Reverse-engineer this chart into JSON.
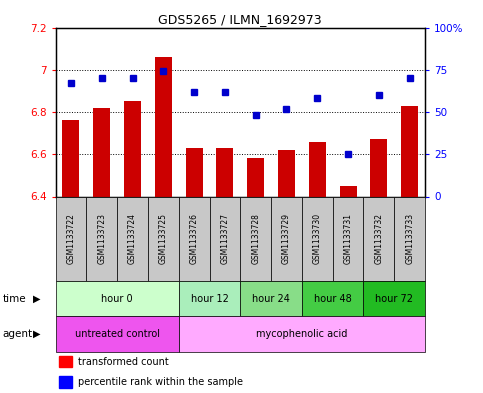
{
  "title": "GDS5265 / ILMN_1692973",
  "samples": [
    "GSM1133722",
    "GSM1133723",
    "GSM1133724",
    "GSM1133725",
    "GSM1133726",
    "GSM1133727",
    "GSM1133728",
    "GSM1133729",
    "GSM1133730",
    "GSM1133731",
    "GSM1133732",
    "GSM1133733"
  ],
  "transformed_counts": [
    6.76,
    6.82,
    6.85,
    7.06,
    6.63,
    6.63,
    6.58,
    6.62,
    6.66,
    6.45,
    6.67,
    6.83
  ],
  "percentile_ranks": [
    67,
    70,
    70,
    74,
    62,
    62,
    48,
    52,
    58,
    25,
    60,
    70
  ],
  "ylim_left": [
    6.4,
    7.2
  ],
  "ylim_right": [
    0,
    100
  ],
  "yticks_left": [
    6.4,
    6.6,
    6.8,
    7.0,
    7.2
  ],
  "yticks_right": [
    0,
    25,
    50,
    75,
    100
  ],
  "ytick_labels_left": [
    "6.4",
    "6.6",
    "6.8",
    "7",
    "7.2"
  ],
  "ytick_labels_right": [
    "0",
    "25",
    "50",
    "75",
    "100%"
  ],
  "bar_color": "#cc0000",
  "dot_color": "#0000cc",
  "bar_bottom": 6.4,
  "time_groups": [
    {
      "label": "hour 0",
      "start": 0,
      "end": 3,
      "color": "#ccffcc"
    },
    {
      "label": "hour 12",
      "start": 4,
      "end": 5,
      "color": "#aaeebb"
    },
    {
      "label": "hour 24",
      "start": 6,
      "end": 7,
      "color": "#88dd88"
    },
    {
      "label": "hour 48",
      "start": 8,
      "end": 9,
      "color": "#44cc44"
    },
    {
      "label": "hour 72",
      "start": 10,
      "end": 11,
      "color": "#22bb22"
    }
  ],
  "agent_groups": [
    {
      "label": "untreated control",
      "start": 0,
      "end": 3,
      "color": "#ee55ee"
    },
    {
      "label": "mycophenolic acid",
      "start": 4,
      "end": 11,
      "color": "#ffaaff"
    }
  ],
  "legend_bar_label": "transformed count",
  "legend_dot_label": "percentile rank within the sample",
  "sample_bg_color": "#c8c8c8",
  "grid_linestyle": ":"
}
